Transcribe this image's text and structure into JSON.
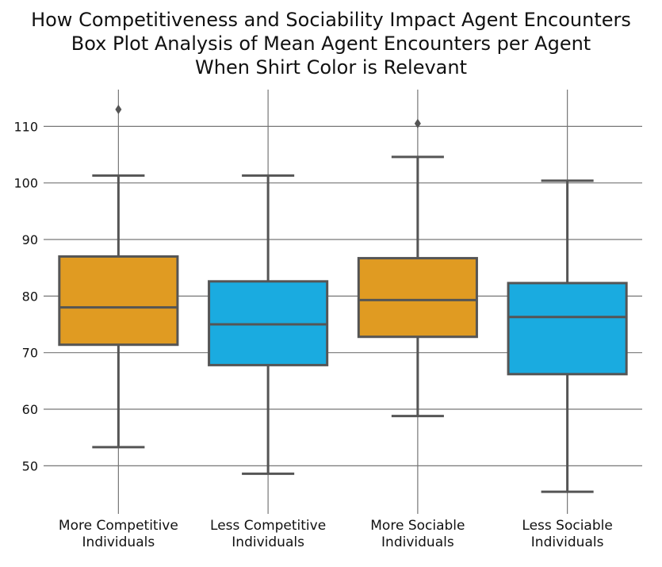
{
  "title_lines": [
    "How Competitiveness and Sociability Impact Agent Encounters",
    "Box Plot Analysis of Mean Agent Encounters per Agent",
    "When Shirt Color is Relevant"
  ],
  "chart_data": {
    "type": "box",
    "title": "How Competitiveness and Sociability Impact Agent Encounters Box Plot Analysis of Mean Agent Encounters per Agent When Shirt Color is Relevant",
    "xlabel": "",
    "ylabel": "",
    "ylim": [
      41.5,
      116.5
    ],
    "yticks": [
      50,
      60,
      70,
      80,
      90,
      100,
      110
    ],
    "grid": true,
    "legend": "none",
    "categories": [
      [
        "More Competitive",
        "Individuals"
      ],
      [
        "Less Competitive",
        "Individuals"
      ],
      [
        "More Sociable",
        "Individuals"
      ],
      [
        "Less Sociable",
        "Individuals"
      ]
    ],
    "boxes": [
      {
        "whisker_low": 53.3,
        "q1": 71.4,
        "median": 78.0,
        "q3": 87.0,
        "whisker_high": 101.3,
        "outliers": [
          113.0
        ],
        "color": "#e09b22"
      },
      {
        "whisker_low": 48.6,
        "q1": 67.8,
        "median": 75.0,
        "q3": 82.6,
        "whisker_high": 101.3,
        "outliers": [],
        "color": "#1aabe0"
      },
      {
        "whisker_low": 58.8,
        "q1": 72.8,
        "median": 79.3,
        "q3": 86.7,
        "whisker_high": 104.6,
        "outliers": [
          110.5
        ],
        "color": "#e09b22"
      },
      {
        "whisker_low": 45.4,
        "q1": 66.2,
        "median": 76.3,
        "q3": 82.3,
        "whisker_high": 100.4,
        "outliers": [],
        "color": "#1aabe0"
      }
    ],
    "line_color": "#555555",
    "grid_color": "#777777"
  }
}
